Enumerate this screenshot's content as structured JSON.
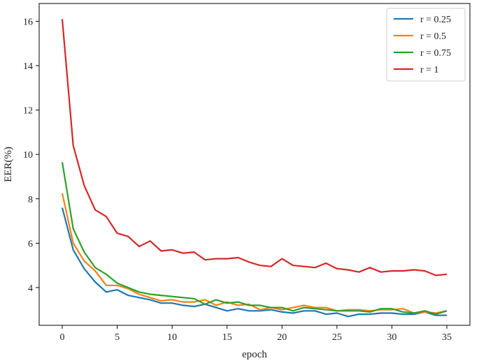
{
  "chart_data": {
    "type": "line",
    "title": "",
    "xlabel": "epoch",
    "ylabel": "EER(%)",
    "xlim": [
      -2.1,
      37.1
    ],
    "ylim": [
      2.3,
      16.8
    ],
    "xticks": [
      0,
      5,
      10,
      15,
      20,
      25,
      30,
      35
    ],
    "yticks": [
      4,
      6,
      8,
      10,
      12,
      14,
      16
    ],
    "grid": false,
    "legend_position": "top-right",
    "x": [
      0,
      1,
      2,
      3,
      4,
      5,
      6,
      7,
      8,
      9,
      10,
      11,
      12,
      13,
      14,
      15,
      16,
      17,
      18,
      19,
      20,
      21,
      22,
      23,
      24,
      25,
      26,
      27,
      28,
      29,
      30,
      31,
      32,
      33,
      34,
      35
    ],
    "series": [
      {
        "name": "r = 0.25",
        "color": "#1f77b4",
        "values": [
          7.6,
          5.7,
          4.85,
          4.25,
          3.8,
          3.9,
          3.65,
          3.55,
          3.45,
          3.3,
          3.3,
          3.2,
          3.15,
          3.25,
          3.1,
          2.95,
          3.05,
          2.95,
          2.95,
          3.0,
          2.9,
          2.85,
          2.95,
          2.95,
          2.8,
          2.85,
          2.7,
          2.8,
          2.8,
          2.85,
          2.85,
          2.8,
          2.8,
          2.9,
          2.75,
          2.75
        ]
      },
      {
        "name": "r = 0.5",
        "color": "#ff7f0e",
        "values": [
          8.25,
          6.0,
          5.2,
          4.75,
          4.1,
          4.1,
          3.95,
          3.7,
          3.55,
          3.4,
          3.45,
          3.35,
          3.35,
          3.45,
          3.2,
          3.35,
          3.2,
          3.25,
          3.0,
          3.1,
          3.0,
          3.1,
          3.2,
          3.1,
          3.1,
          2.95,
          3.0,
          3.0,
          2.95,
          3.0,
          3.0,
          3.05,
          2.85,
          2.9,
          2.85,
          2.95
        ]
      },
      {
        "name": "r = 0.75",
        "color": "#2ca02c",
        "values": [
          9.65,
          6.65,
          5.6,
          4.9,
          4.6,
          4.2,
          4.0,
          3.8,
          3.7,
          3.65,
          3.6,
          3.55,
          3.5,
          3.25,
          3.45,
          3.3,
          3.35,
          3.2,
          3.2,
          3.1,
          3.1,
          2.95,
          3.1,
          3.05,
          3.0,
          2.95,
          2.95,
          2.95,
          2.9,
          3.05,
          3.05,
          2.9,
          2.85,
          2.95,
          2.8,
          2.95
        ]
      },
      {
        "name": "r = 1",
        "color": "#d62728",
        "values": [
          16.1,
          10.4,
          8.6,
          7.5,
          7.2,
          6.45,
          6.3,
          5.85,
          6.1,
          5.65,
          5.7,
          5.55,
          5.6,
          5.25,
          5.3,
          5.3,
          5.35,
          5.15,
          5.0,
          4.95,
          5.3,
          5.0,
          4.95,
          4.9,
          5.1,
          4.85,
          4.8,
          4.7,
          4.9,
          4.7,
          4.75,
          4.75,
          4.8,
          4.75,
          4.55,
          4.6
        ]
      }
    ]
  }
}
